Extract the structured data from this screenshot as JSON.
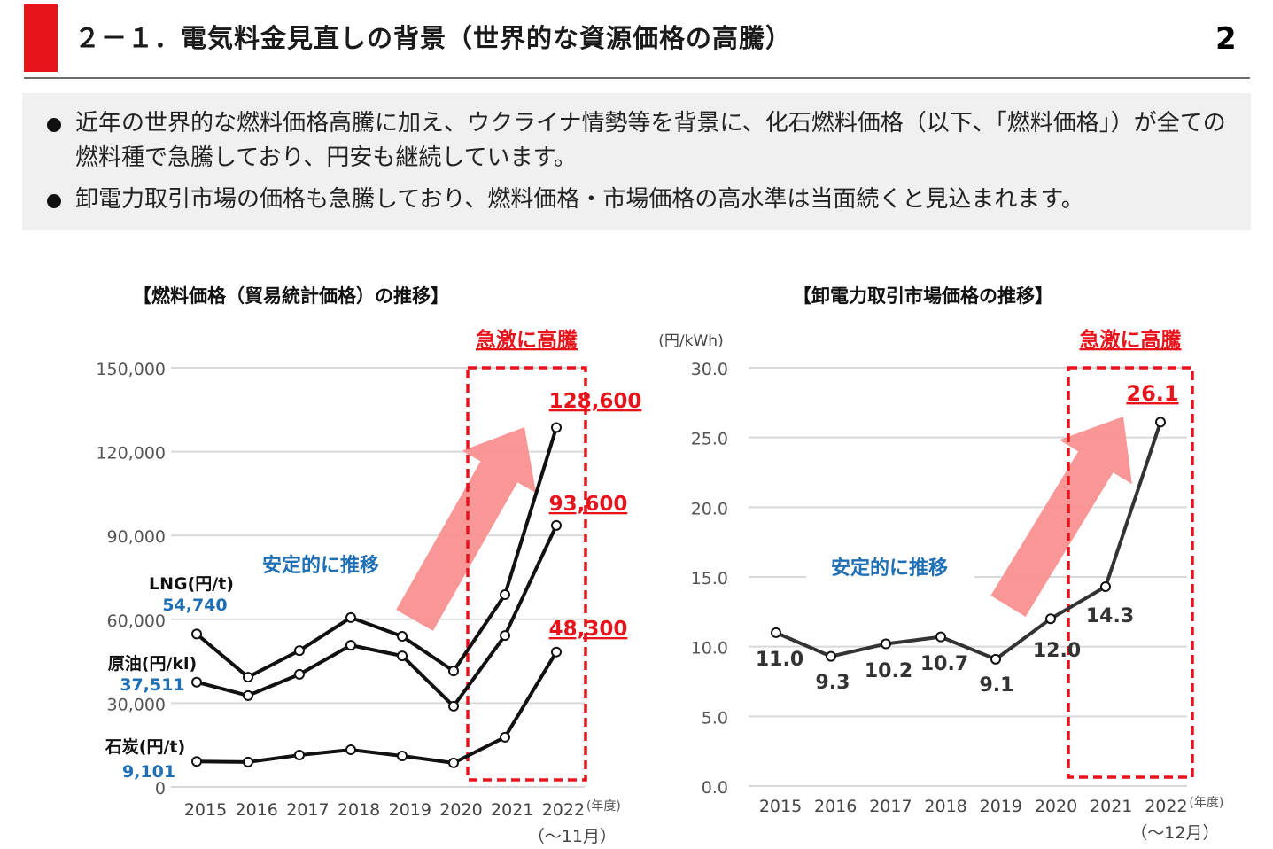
{
  "header": {
    "title": "２－１．電気料金見直しの背景（世界的な資源価格の高騰）",
    "page_number": "2",
    "accent_color": "#e8141b"
  },
  "summary": {
    "bullets": [
      "近年の世界的な燃料価格高騰に加え、ウクライナ情勢等を背景に、化石燃料価格（以下、「燃料価格」）が全ての燃料種で急騰しており、円安も継続しています。",
      "卸電力取引市場の価格も急騰しており、燃料価格・市場価格の高水準は当面続くと見込まれます。"
    ]
  },
  "annotations": {
    "stable_label": "安定的に推移",
    "surge_label": "急激に高騰",
    "stable_color": "#1f6fb5",
    "surge_color": "#e8141b",
    "arrow_color": "#f99090"
  },
  "chart_data": [
    {
      "type": "line",
      "title": "【燃料価格（貿易統計価格）の推移】",
      "xlabel": "(年度)",
      "x_note": "（～11月）",
      "ylabel": "",
      "categories": [
        "2015",
        "2016",
        "2017",
        "2018",
        "2019",
        "2020",
        "2021",
        "2022"
      ],
      "ylim": [
        0,
        150000
      ],
      "yticks": [
        0,
        30000,
        60000,
        90000,
        120000,
        150000
      ],
      "ytick_labels": [
        "0",
        "30,000",
        "60,000",
        "90,000",
        "120,000",
        "150,000"
      ],
      "grid": true,
      "legend": "inline-left",
      "highlight_range": [
        "2021",
        "2022"
      ],
      "series": [
        {
          "name": "LNG(円/t)",
          "start_label": "54,740",
          "end_label": "128,600",
          "values": [
            54740,
            39300,
            48800,
            60600,
            53900,
            41500,
            68800,
            128600
          ]
        },
        {
          "name": "原油(円/kl)",
          "start_label": "37,511",
          "end_label": "93,600",
          "values": [
            37511,
            32700,
            40300,
            50700,
            46900,
            28900,
            54200,
            93600
          ]
        },
        {
          "name": "石炭(円/t)",
          "start_label": "9,101",
          "end_label": "48,300",
          "values": [
            9101,
            8900,
            11400,
            13300,
            11100,
            8600,
            17800,
            48300
          ]
        }
      ]
    },
    {
      "type": "line",
      "title": "【卸電力取引市場価格の推移】",
      "xlabel": "(年度)",
      "x_note": "（～12月）",
      "ylabel": "(円/kWh)",
      "categories": [
        "2015",
        "2016",
        "2017",
        "2018",
        "2019",
        "2020",
        "2021",
        "2022"
      ],
      "ylim": [
        0,
        30
      ],
      "yticks": [
        0,
        5,
        10,
        15,
        20,
        25,
        30
      ],
      "ytick_labels": [
        "0.0",
        "5.0",
        "10.0",
        "15.0",
        "20.0",
        "25.0",
        "30.0"
      ],
      "grid": true,
      "legend": "none",
      "highlight_range": [
        "2021",
        "2022"
      ],
      "series": [
        {
          "name": "卸電力取引市場価格",
          "values": [
            11.0,
            9.3,
            10.2,
            10.7,
            9.1,
            12.0,
            14.3,
            26.1
          ],
          "value_labels": [
            "11.0",
            "9.3",
            "10.2",
            "10.7",
            "9.1",
            "12.0",
            "14.3",
            "26.1"
          ]
        }
      ]
    }
  ]
}
